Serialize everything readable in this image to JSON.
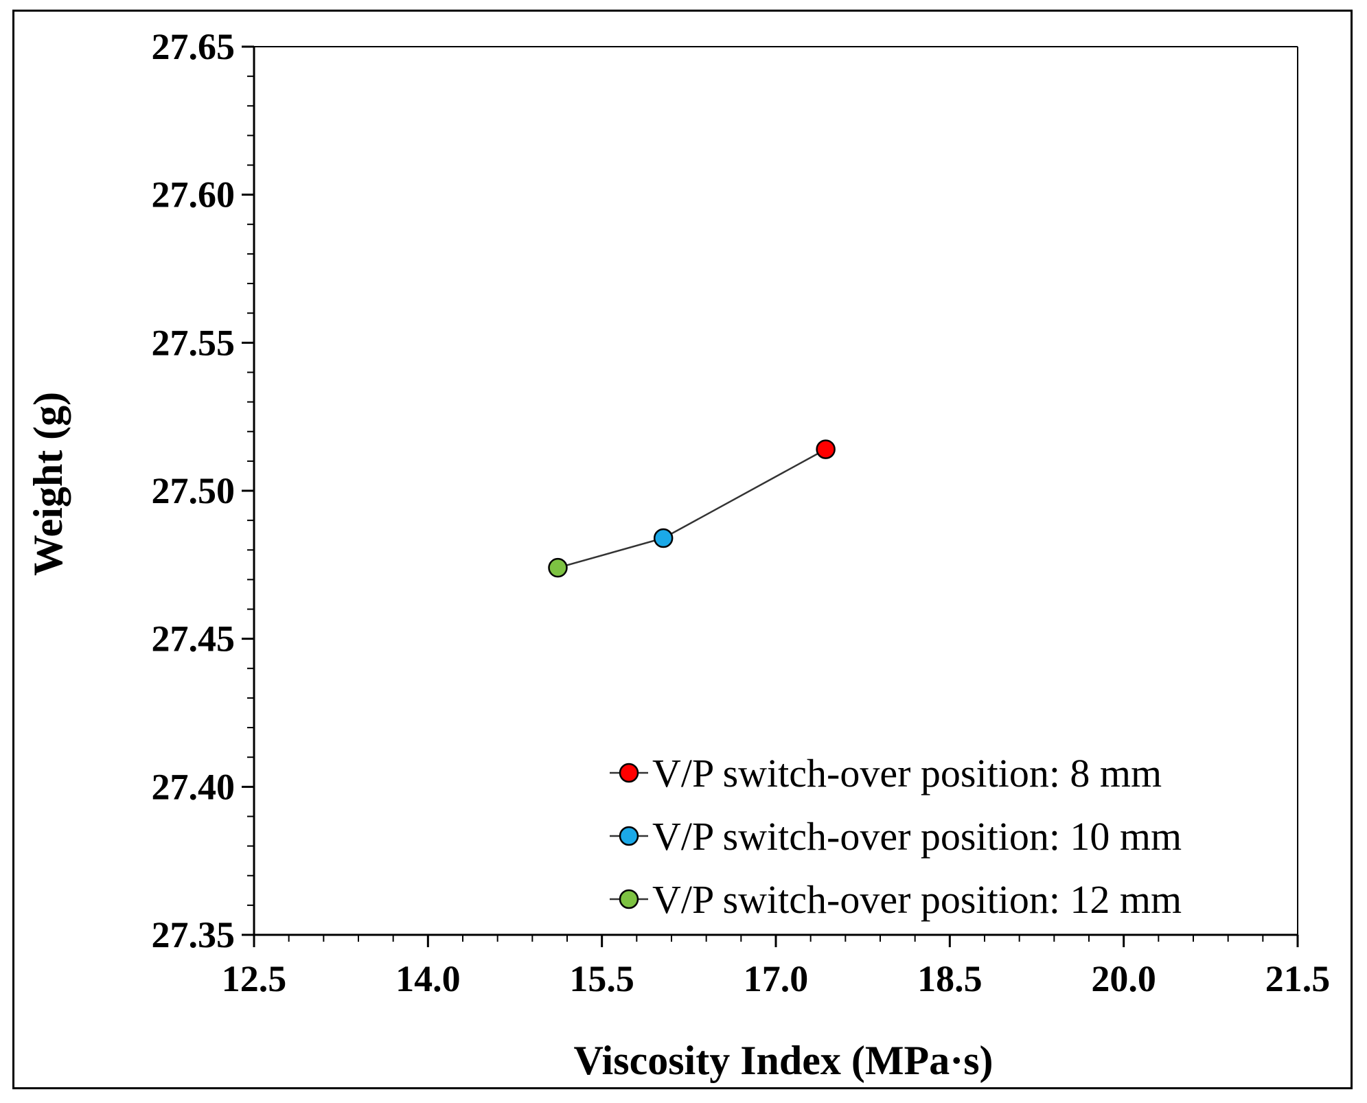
{
  "chart_data": {
    "type": "scatter",
    "title": "",
    "xlabel": "Viscosity Index (MPa·s)",
    "ylabel": "Weight (g)",
    "xlim": [
      12.5,
      21.5
    ],
    "ylim": [
      27.35,
      27.65
    ],
    "xticks": [
      "12.5",
      "14.0",
      "15.5",
      "17.0",
      "18.5",
      "20.0",
      "21.5"
    ],
    "yticks": [
      "27.35",
      "27.40",
      "27.45",
      "27.50",
      "27.55",
      "27.60",
      "27.65"
    ],
    "x_minor_step": 0.3,
    "y_minor_step": 0.01,
    "grid": false,
    "legend_position": "bottom-right",
    "line_color": "#333333",
    "series": [
      {
        "name": "V/P switch-over position: 8 mm",
        "color": "#ff0000",
        "x": 17.43,
        "y": 27.514
      },
      {
        "name": "V/P switch-over position: 10 mm",
        "color": "#1ba9e8",
        "x": 16.03,
        "y": 27.484
      },
      {
        "name": "V/P switch-over position: 12 mm",
        "color": "#7dc242",
        "x": 15.12,
        "y": 27.474
      }
    ]
  }
}
